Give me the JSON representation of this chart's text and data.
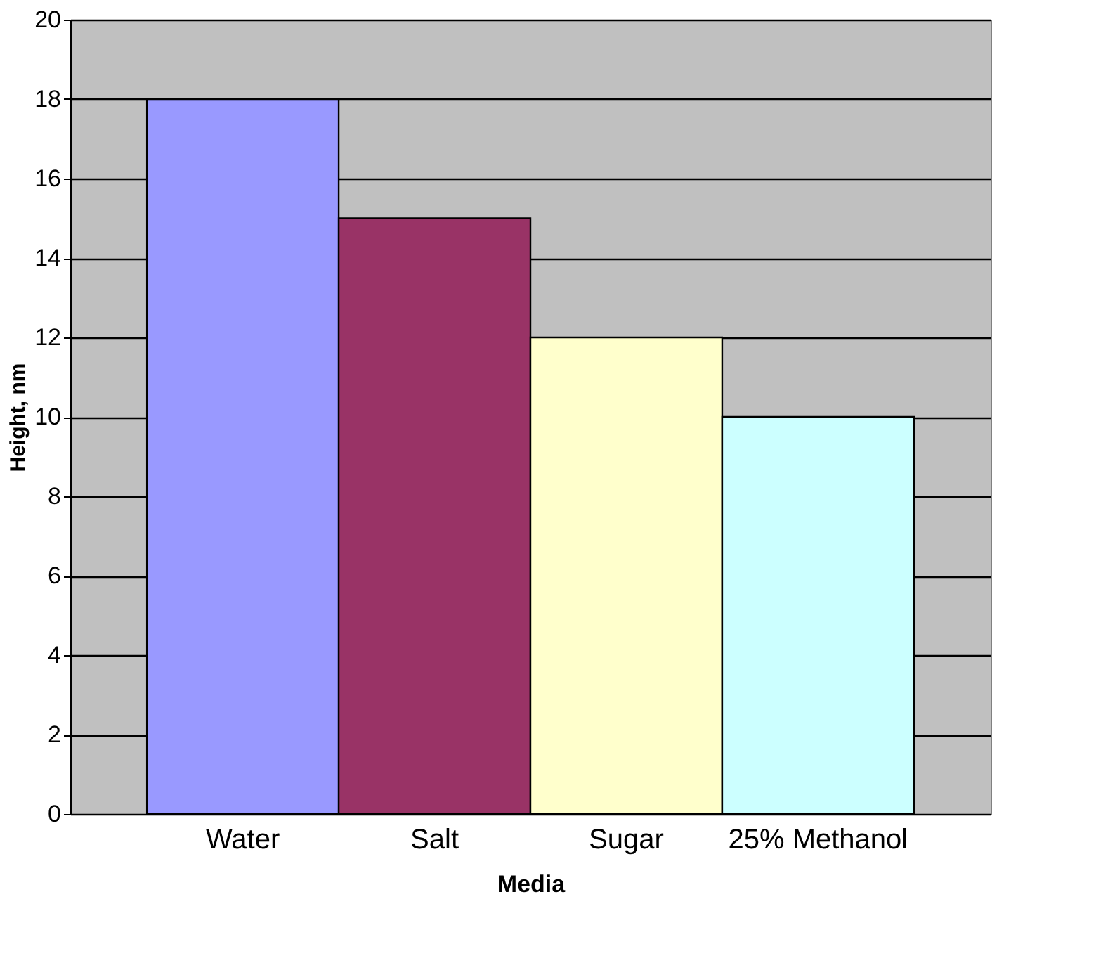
{
  "chart_data": {
    "type": "bar",
    "xlabel": "Media",
    "ylabel": "Height, nm",
    "categories": [
      "Water",
      "Salt",
      "Sugar",
      "25% Methanol"
    ],
    "values": [
      18,
      15,
      12,
      10
    ],
    "colors": [
      "#9999ff",
      "#993366",
      "#ffffcc",
      "#ccffff"
    ],
    "ylim": [
      0,
      20
    ],
    "yticks": [
      0,
      2,
      4,
      6,
      8,
      10,
      12,
      14,
      16,
      18,
      20
    ],
    "grid": "y"
  }
}
